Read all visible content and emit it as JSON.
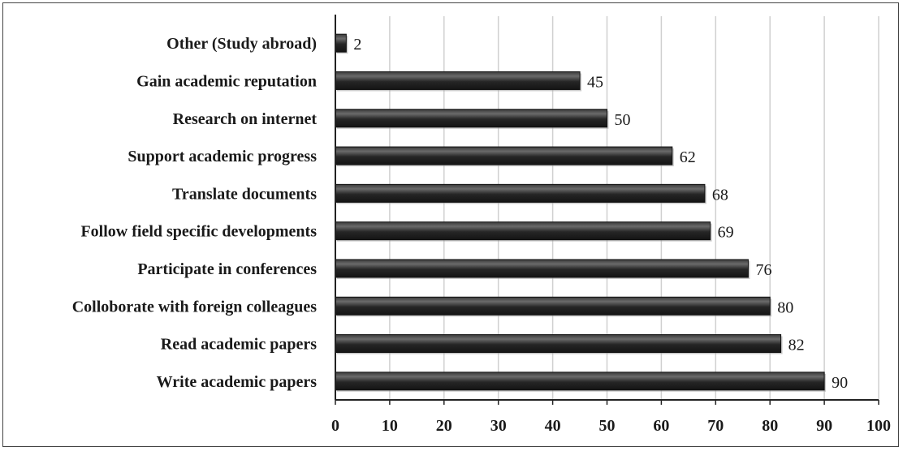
{
  "chart_data": {
    "type": "bar",
    "orientation": "horizontal",
    "categories": [
      "Other (Study abroad)",
      "Gain academic reputation",
      "Research on internet",
      "Support academic progress",
      "Translate documents",
      "Follow field specific developments",
      "Participate in conferences",
      "Colloborate with foreign colleagues",
      "Read academic papers",
      "Write academic papers"
    ],
    "values": [
      2,
      45,
      50,
      62,
      68,
      69,
      76,
      80,
      82,
      90
    ],
    "data_labels": [
      "2",
      "45",
      "50",
      "62",
      "68",
      "69",
      "76",
      "80",
      "82",
      "90"
    ],
    "xlim": [
      0,
      100
    ],
    "x_ticks": [
      "0",
      "10",
      "20",
      "30",
      "40",
      "50",
      "60",
      "70",
      "80",
      "90",
      "100"
    ],
    "title": "",
    "xlabel": "",
    "ylabel": "",
    "grid": "vertical",
    "legend": "none",
    "colors": {
      "bar": "#1e1e1e",
      "bar_highlight": "#6a6a6a",
      "grid": "#d0d0d0",
      "axis": "#222222",
      "frame": "#444444"
    }
  }
}
